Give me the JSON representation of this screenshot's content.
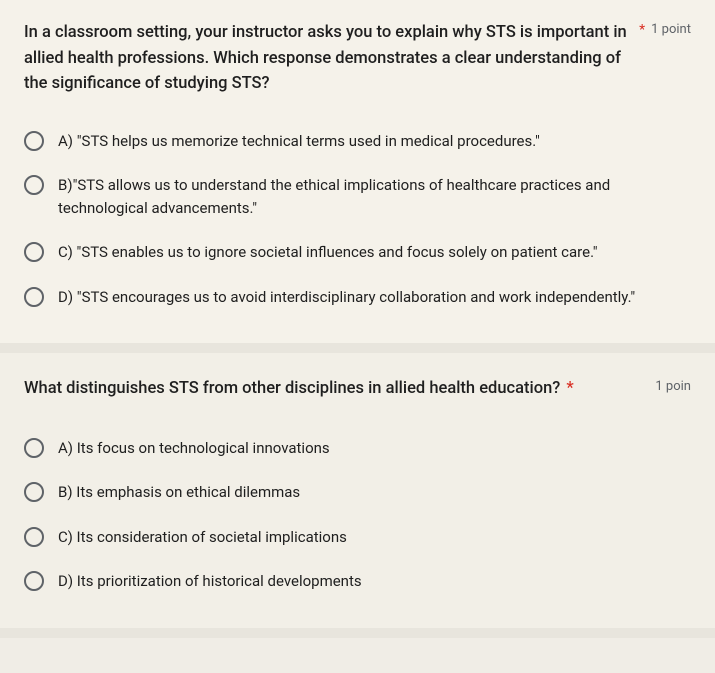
{
  "question1": {
    "text": "In a classroom setting, your instructor asks you to explain why STS is important in allied health professions. Which response demonstrates a clear understanding of the significance of studying STS?",
    "points": "1 point",
    "required_marker": "*",
    "options": {
      "a": "A) \"STS helps us memorize technical terms used in medical procedures.\"",
      "b": "B)\"STS allows us to understand the ethical implications of healthcare practices and technological advancements.\"",
      "c": "C) \"STS enables us to ignore societal influences and focus solely on patient care.\"",
      "d": "D) \"STS encourages us to avoid interdisciplinary collaboration and work independently.\""
    }
  },
  "question2": {
    "text": "What distinguishes STS from other disciplines in allied health education?",
    "required_marker": "*",
    "points": "1 poin",
    "options": {
      "a": "A) Its focus on technological innovations",
      "b": "B) Its emphasis on ethical dilemmas",
      "c": "C) Its consideration of societal implications",
      "d": "D) Its prioritization of historical developments"
    }
  }
}
